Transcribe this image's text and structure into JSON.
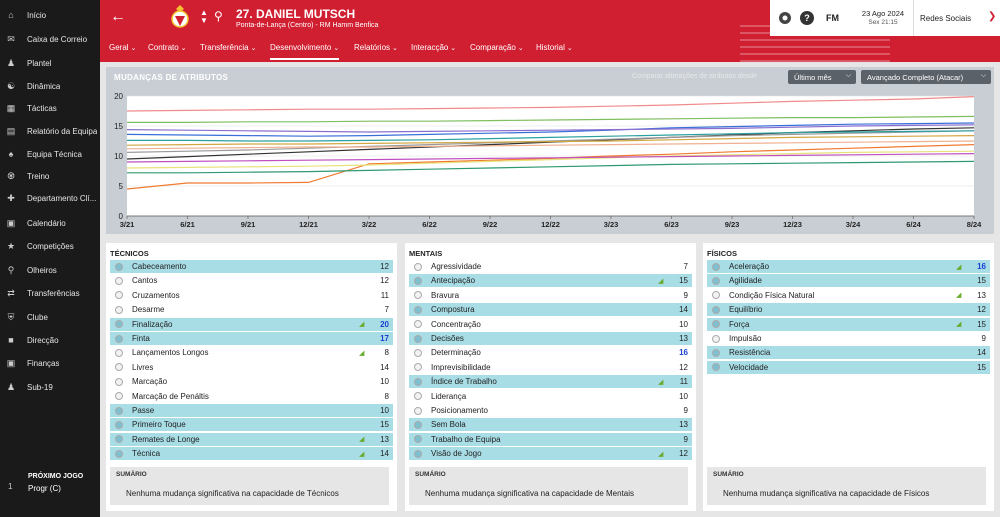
{
  "sidebar": {
    "items": [
      {
        "label": "Início",
        "icon": "home-icon"
      },
      {
        "label": "Caixa de Correio",
        "icon": "inbox-icon"
      },
      {
        "label": "Plantel",
        "icon": "squad-icon"
      },
      {
        "label": "Dinâmica",
        "icon": "dynamics-icon"
      },
      {
        "label": "Tácticas",
        "icon": "tactics-icon"
      },
      {
        "label": "Relatório da Equipa",
        "icon": "report-icon"
      },
      {
        "label": "Equipa Técnica",
        "icon": "staff-icon"
      },
      {
        "label": "Treino",
        "icon": "training-icon"
      },
      {
        "label": "Departamento Clí...",
        "icon": "medical-icon"
      },
      {
        "label": "Calendário",
        "icon": "calendar-icon"
      },
      {
        "label": "Competições",
        "icon": "trophy-icon"
      },
      {
        "label": "Olheiros",
        "icon": "scouting-icon"
      },
      {
        "label": "Transferências",
        "icon": "transfers-icon"
      },
      {
        "label": "Clube",
        "icon": "club-icon"
      },
      {
        "label": "Direcção",
        "icon": "board-icon"
      },
      {
        "label": "Finanças",
        "icon": "finances-icon"
      },
      {
        "label": "Sub-19",
        "icon": "u19-icon"
      }
    ],
    "next_match": {
      "label": "PRÓXIMO JOGO",
      "opponent": "Progr (C)",
      "count": "1"
    }
  },
  "header": {
    "player_name": "27. DANIEL MUTSCH",
    "subtitle": "Ponta-de-Lança (Centro) - RM Hamm Benfica",
    "date": "23 Ago 2024",
    "time": "Sex 21:15",
    "social": "Redes Sociais",
    "fm": "FM",
    "help": "?"
  },
  "tabs": [
    "Geral",
    "Contrato",
    "Transferência",
    "Desenvolvimento",
    "Relatórios",
    "Interacção",
    "Comparação",
    "Historial"
  ],
  "active_tab": "Desenvolvimento",
  "chart_panel": {
    "title": "MUDANÇAS DE ATRIBUTOS",
    "compare_label": "Comparar alterações de atributos desde",
    "period": "Último mês",
    "role": "Avançado Completo (Atacar)"
  },
  "chart_data": {
    "type": "line",
    "x": [
      "3/21",
      "6/21",
      "9/21",
      "12/21",
      "3/22",
      "6/22",
      "9/22",
      "12/22",
      "3/23",
      "6/23",
      "9/23",
      "12/23",
      "3/24",
      "6/24",
      "8/24"
    ],
    "ylim": [
      0,
      20
    ],
    "yticks": [
      0,
      5,
      10,
      15,
      20
    ],
    "grid": true,
    "series": [
      {
        "color": "#f08a8a",
        "values": [
          17.5,
          17.6,
          17.7,
          17.8,
          17.8,
          17.9,
          18.0,
          18.1,
          18.3,
          18.5,
          18.8,
          19.1,
          19.3,
          19.5,
          19.9
        ]
      },
      {
        "color": "#7fbf5f",
        "values": [
          15.6,
          15.6,
          15.7,
          15.7,
          15.8,
          15.8,
          15.9,
          16.0,
          16.1,
          16.2,
          16.3,
          16.4,
          16.4,
          16.5,
          16.6
        ]
      },
      {
        "color": "#3a6fd8",
        "values": [
          13.6,
          13.5,
          13.4,
          13.3,
          13.4,
          13.6,
          13.8,
          14.0,
          14.3,
          14.7,
          14.9,
          15.1,
          15.3,
          15.4,
          15.5
        ]
      },
      {
        "color": "#8a6fd0",
        "values": [
          14.4,
          14.3,
          14.2,
          14.1,
          14.0,
          14.1,
          14.2,
          14.3,
          14.4,
          14.5,
          14.6,
          14.8,
          15.0,
          15.1,
          15.2
        ]
      },
      {
        "color": "#333333",
        "values": [
          9.5,
          9.9,
          10.3,
          10.7,
          11.1,
          11.5,
          11.9,
          12.3,
          12.7,
          13.1,
          13.5,
          13.9,
          14.2,
          14.5,
          14.7
        ]
      },
      {
        "color": "#9a9a9a",
        "values": [
          10.6,
          10.8,
          11.0,
          11.3,
          11.6,
          11.9,
          12.2,
          12.5,
          12.8,
          13.1,
          13.4,
          13.6,
          13.8,
          14.0,
          14.2
        ]
      },
      {
        "color": "#2aa0a0",
        "values": [
          12.6,
          12.6,
          12.5,
          12.5,
          12.6,
          12.7,
          12.9,
          13.1,
          13.3,
          13.5,
          13.7,
          13.9,
          14.0,
          14.1,
          14.2
        ]
      },
      {
        "color": "#d2a640",
        "values": [
          11.8,
          11.9,
          12.0,
          12.0,
          12.1,
          12.2,
          12.3,
          12.4,
          12.5,
          12.7,
          12.9,
          13.1,
          13.2,
          13.3,
          13.4
        ]
      },
      {
        "color": "#f0b090",
        "values": [
          11.2,
          11.3,
          11.4,
          11.5,
          11.5,
          11.6,
          11.7,
          11.8,
          11.9,
          12.0,
          12.1,
          12.2,
          12.3,
          12.4,
          12.5
        ]
      },
      {
        "color": "#f07a30",
        "values": [
          4.5,
          5.5,
          5.5,
          5.6,
          8.7,
          9.0,
          9.3,
          9.6,
          10.0,
          10.3,
          10.7,
          11.0,
          11.3,
          11.6,
          11.9
        ]
      },
      {
        "color": "#2f9a70",
        "values": [
          7.2,
          7.2,
          7.3,
          7.4,
          7.6,
          7.8,
          8.0,
          8.2,
          8.4,
          8.6,
          8.7,
          8.8,
          8.9,
          9.0,
          9.1
        ]
      },
      {
        "color": "#e7e27a",
        "values": [
          8.0,
          8.1,
          8.2,
          8.3,
          8.5,
          8.8,
          9.1,
          9.4,
          9.7,
          10.0,
          10.2,
          10.4,
          10.6,
          10.7,
          10.8
        ]
      },
      {
        "color": "#c050c0",
        "values": [
          9.0,
          9.1,
          9.2,
          9.3,
          9.4,
          9.5,
          9.6,
          9.7,
          9.8,
          9.9,
          10.0,
          10.1,
          10.2,
          10.3,
          10.4
        ]
      }
    ]
  },
  "panels": [
    {
      "title": "TÉCNICOS",
      "summary_title": "SUMÁRIO",
      "summary_text": "Nenhuma mudança significativa na capacidade de Técnicos",
      "rows": [
        {
          "name": "Cabeceamento",
          "value": "12",
          "hl": true,
          "up": false,
          "blue": false
        },
        {
          "name": "Cantos",
          "value": "12",
          "hl": false,
          "up": false,
          "blue": false
        },
        {
          "name": "Cruzamentos",
          "value": "11",
          "hl": false,
          "up": false,
          "blue": false
        },
        {
          "name": "Desarme",
          "value": "7",
          "hl": false,
          "up": false,
          "blue": false
        },
        {
          "name": "Finalização",
          "value": "20",
          "hl": true,
          "up": true,
          "blue": true
        },
        {
          "name": "Finta",
          "value": "17",
          "hl": true,
          "up": false,
          "blue": true
        },
        {
          "name": "Lançamentos Longos",
          "value": "8",
          "hl": false,
          "up": true,
          "blue": false
        },
        {
          "name": "Livres",
          "value": "14",
          "hl": false,
          "up": false,
          "blue": false
        },
        {
          "name": "Marcação",
          "value": "10",
          "hl": false,
          "up": false,
          "blue": false
        },
        {
          "name": "Marcação de Penáltis",
          "value": "8",
          "hl": false,
          "up": false,
          "blue": false
        },
        {
          "name": "Passe",
          "value": "10",
          "hl": true,
          "up": false,
          "blue": false
        },
        {
          "name": "Primeiro Toque",
          "value": "15",
          "hl": true,
          "up": false,
          "blue": false
        },
        {
          "name": "Remates de Longe",
          "value": "13",
          "hl": true,
          "up": true,
          "blue": false
        },
        {
          "name": "Técnica",
          "value": "14",
          "hl": true,
          "up": true,
          "blue": false
        }
      ]
    },
    {
      "title": "MENTAIS",
      "summary_title": "SUMÁRIO",
      "summary_text": "Nenhuma mudança significativa na capacidade de Mentais",
      "rows": [
        {
          "name": "Agressividade",
          "value": "7",
          "hl": false,
          "up": false,
          "blue": false
        },
        {
          "name": "Antecipação",
          "value": "15",
          "hl": true,
          "up": true,
          "blue": false
        },
        {
          "name": "Bravura",
          "value": "9",
          "hl": false,
          "up": false,
          "blue": false
        },
        {
          "name": "Compostura",
          "value": "14",
          "hl": true,
          "up": false,
          "blue": false
        },
        {
          "name": "Concentração",
          "value": "10",
          "hl": false,
          "up": false,
          "blue": false
        },
        {
          "name": "Decisões",
          "value": "13",
          "hl": true,
          "up": false,
          "blue": false
        },
        {
          "name": "Determinação",
          "value": "16",
          "hl": false,
          "up": false,
          "blue": true
        },
        {
          "name": "Imprevisibilidade",
          "value": "12",
          "hl": false,
          "up": false,
          "blue": false
        },
        {
          "name": "Índice de Trabalho",
          "value": "11",
          "hl": true,
          "up": true,
          "blue": false
        },
        {
          "name": "Liderança",
          "value": "10",
          "hl": false,
          "up": false,
          "blue": false
        },
        {
          "name": "Posicionamento",
          "value": "9",
          "hl": false,
          "up": false,
          "blue": false
        },
        {
          "name": "Sem Bola",
          "value": "13",
          "hl": true,
          "up": false,
          "blue": false
        },
        {
          "name": "Trabalho de Equipa",
          "value": "9",
          "hl": true,
          "up": false,
          "blue": false
        },
        {
          "name": "Visão de Jogo",
          "value": "12",
          "hl": true,
          "up": true,
          "blue": false
        }
      ]
    },
    {
      "title": "FÍSICOS",
      "summary_title": "SUMÁRIO",
      "summary_text": "Nenhuma mudança significativa na capacidade de Físicos",
      "rows": [
        {
          "name": "Aceleração",
          "value": "16",
          "hl": true,
          "up": true,
          "blue": true
        },
        {
          "name": "Agilidade",
          "value": "15",
          "hl": true,
          "up": false,
          "blue": false
        },
        {
          "name": "Condição Física Natural",
          "value": "13",
          "hl": false,
          "up": true,
          "blue": false
        },
        {
          "name": "Equilíbrio",
          "value": "12",
          "hl": true,
          "up": false,
          "blue": false
        },
        {
          "name": "Força",
          "value": "15",
          "hl": true,
          "up": true,
          "blue": false
        },
        {
          "name": "Impulsão",
          "value": "9",
          "hl": false,
          "up": false,
          "blue": false
        },
        {
          "name": "Resistência",
          "value": "14",
          "hl": true,
          "up": false,
          "blue": false
        },
        {
          "name": "Velocidade",
          "value": "15",
          "hl": true,
          "up": false,
          "blue": false
        }
      ]
    }
  ]
}
